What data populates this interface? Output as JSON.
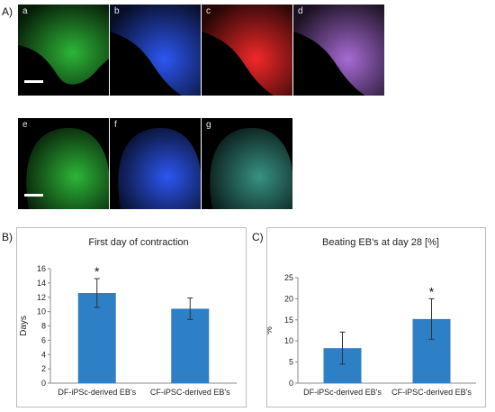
{
  "panel_letters": {
    "a": "A)",
    "b": "B)",
    "c": "C)"
  },
  "micrographs": [
    {
      "label": "a",
      "channel_color": "#2fbf3a"
    },
    {
      "label": "b",
      "channel_color": "#2f5bff"
    },
    {
      "label": "c",
      "channel_color": "#ff2a2a"
    },
    {
      "label": "d",
      "channel_color": "#b070e0"
    },
    {
      "label": "e",
      "channel_color": "#2fbf3a"
    },
    {
      "label": "f",
      "channel_color": "#2f5bff"
    },
    {
      "label": "g",
      "channel_color": "#3a9a8a"
    }
  ],
  "chart_data": [
    {
      "type": "bar",
      "title": "First day of contraction",
      "ylabel": "Days",
      "xlabel": "",
      "categories": [
        "DF-iPSc-derived EB's",
        "CF-iPSC-derived EB's"
      ],
      "values": [
        12.6,
        10.4
      ],
      "errors": [
        2.0,
        1.5
      ],
      "significance": [
        "*",
        ""
      ],
      "ylim": [
        0,
        16
      ],
      "yticks": [
        0,
        2,
        4,
        6,
        8,
        10,
        12,
        14,
        16
      ],
      "bar_color": "#2d7fc6"
    },
    {
      "type": "bar",
      "title": "Beating EB's at day 28 [%]",
      "ylabel": "%",
      "xlabel": "",
      "categories": [
        "DF-iPSc-derived EB's",
        "CF-iPSC-derived EB's"
      ],
      "values": [
        8.3,
        15.2
      ],
      "errors": [
        3.8,
        4.8
      ],
      "significance": [
        "",
        "*"
      ],
      "ylim": [
        0,
        25
      ],
      "yticks": [
        0,
        5,
        10,
        15,
        20,
        25
      ],
      "bar_color": "#2d7fc6"
    }
  ]
}
